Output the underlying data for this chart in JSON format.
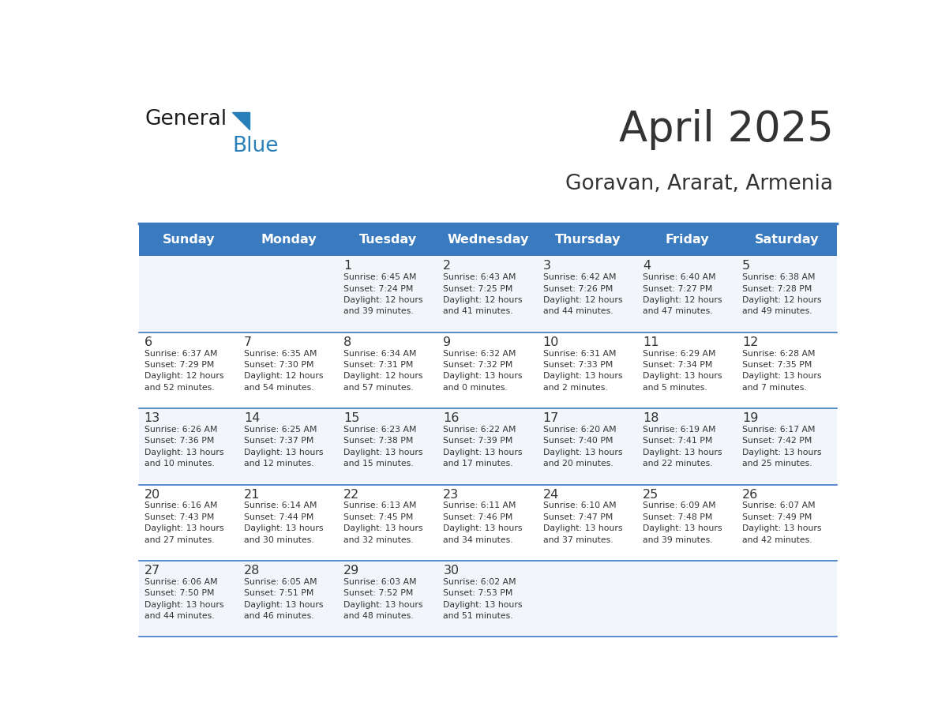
{
  "title": "April 2025",
  "subtitle": "Goravan, Ararat, Armenia",
  "header_color": "#3a7abf",
  "header_text_color": "#ffffff",
  "line_color": "#3a7abf",
  "text_color": "#333333",
  "days_of_week": [
    "Sunday",
    "Monday",
    "Tuesday",
    "Wednesday",
    "Thursday",
    "Friday",
    "Saturday"
  ],
  "calendar": [
    [
      {
        "day": "",
        "info": ""
      },
      {
        "day": "",
        "info": ""
      },
      {
        "day": "1",
        "info": "Sunrise: 6:45 AM\nSunset: 7:24 PM\nDaylight: 12 hours\nand 39 minutes."
      },
      {
        "day": "2",
        "info": "Sunrise: 6:43 AM\nSunset: 7:25 PM\nDaylight: 12 hours\nand 41 minutes."
      },
      {
        "day": "3",
        "info": "Sunrise: 6:42 AM\nSunset: 7:26 PM\nDaylight: 12 hours\nand 44 minutes."
      },
      {
        "day": "4",
        "info": "Sunrise: 6:40 AM\nSunset: 7:27 PM\nDaylight: 12 hours\nand 47 minutes."
      },
      {
        "day": "5",
        "info": "Sunrise: 6:38 AM\nSunset: 7:28 PM\nDaylight: 12 hours\nand 49 minutes."
      }
    ],
    [
      {
        "day": "6",
        "info": "Sunrise: 6:37 AM\nSunset: 7:29 PM\nDaylight: 12 hours\nand 52 minutes."
      },
      {
        "day": "7",
        "info": "Sunrise: 6:35 AM\nSunset: 7:30 PM\nDaylight: 12 hours\nand 54 minutes."
      },
      {
        "day": "8",
        "info": "Sunrise: 6:34 AM\nSunset: 7:31 PM\nDaylight: 12 hours\nand 57 minutes."
      },
      {
        "day": "9",
        "info": "Sunrise: 6:32 AM\nSunset: 7:32 PM\nDaylight: 13 hours\nand 0 minutes."
      },
      {
        "day": "10",
        "info": "Sunrise: 6:31 AM\nSunset: 7:33 PM\nDaylight: 13 hours\nand 2 minutes."
      },
      {
        "day": "11",
        "info": "Sunrise: 6:29 AM\nSunset: 7:34 PM\nDaylight: 13 hours\nand 5 minutes."
      },
      {
        "day": "12",
        "info": "Sunrise: 6:28 AM\nSunset: 7:35 PM\nDaylight: 13 hours\nand 7 minutes."
      }
    ],
    [
      {
        "day": "13",
        "info": "Sunrise: 6:26 AM\nSunset: 7:36 PM\nDaylight: 13 hours\nand 10 minutes."
      },
      {
        "day": "14",
        "info": "Sunrise: 6:25 AM\nSunset: 7:37 PM\nDaylight: 13 hours\nand 12 minutes."
      },
      {
        "day": "15",
        "info": "Sunrise: 6:23 AM\nSunset: 7:38 PM\nDaylight: 13 hours\nand 15 minutes."
      },
      {
        "day": "16",
        "info": "Sunrise: 6:22 AM\nSunset: 7:39 PM\nDaylight: 13 hours\nand 17 minutes."
      },
      {
        "day": "17",
        "info": "Sunrise: 6:20 AM\nSunset: 7:40 PM\nDaylight: 13 hours\nand 20 minutes."
      },
      {
        "day": "18",
        "info": "Sunrise: 6:19 AM\nSunset: 7:41 PM\nDaylight: 13 hours\nand 22 minutes."
      },
      {
        "day": "19",
        "info": "Sunrise: 6:17 AM\nSunset: 7:42 PM\nDaylight: 13 hours\nand 25 minutes."
      }
    ],
    [
      {
        "day": "20",
        "info": "Sunrise: 6:16 AM\nSunset: 7:43 PM\nDaylight: 13 hours\nand 27 minutes."
      },
      {
        "day": "21",
        "info": "Sunrise: 6:14 AM\nSunset: 7:44 PM\nDaylight: 13 hours\nand 30 minutes."
      },
      {
        "day": "22",
        "info": "Sunrise: 6:13 AM\nSunset: 7:45 PM\nDaylight: 13 hours\nand 32 minutes."
      },
      {
        "day": "23",
        "info": "Sunrise: 6:11 AM\nSunset: 7:46 PM\nDaylight: 13 hours\nand 34 minutes."
      },
      {
        "day": "24",
        "info": "Sunrise: 6:10 AM\nSunset: 7:47 PM\nDaylight: 13 hours\nand 37 minutes."
      },
      {
        "day": "25",
        "info": "Sunrise: 6:09 AM\nSunset: 7:48 PM\nDaylight: 13 hours\nand 39 minutes."
      },
      {
        "day": "26",
        "info": "Sunrise: 6:07 AM\nSunset: 7:49 PM\nDaylight: 13 hours\nand 42 minutes."
      }
    ],
    [
      {
        "day": "27",
        "info": "Sunrise: 6:06 AM\nSunset: 7:50 PM\nDaylight: 13 hours\nand 44 minutes."
      },
      {
        "day": "28",
        "info": "Sunrise: 6:05 AM\nSunset: 7:51 PM\nDaylight: 13 hours\nand 46 minutes."
      },
      {
        "day": "29",
        "info": "Sunrise: 6:03 AM\nSunset: 7:52 PM\nDaylight: 13 hours\nand 48 minutes."
      },
      {
        "day": "30",
        "info": "Sunrise: 6:02 AM\nSunset: 7:53 PM\nDaylight: 13 hours\nand 51 minutes."
      },
      {
        "day": "",
        "info": ""
      },
      {
        "day": "",
        "info": ""
      },
      {
        "day": "",
        "info": ""
      }
    ]
  ],
  "logo_text1": "General",
  "logo_text2": "Blue",
  "logo_color1": "#1a1a1a",
  "logo_color2": "#2980b9",
  "cell_bg_even": "#f2f6fb",
  "cell_bg_odd": "#ffffff"
}
